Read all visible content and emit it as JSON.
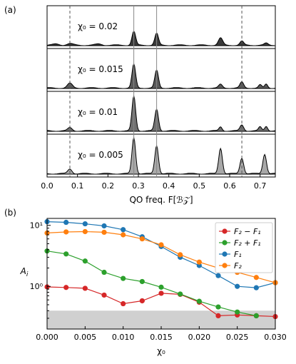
{
  "chart_data": [
    {
      "type": "area",
      "panel_label": "(a)",
      "xlabel": "QO freq. F[ℬ𝒵]",
      "xlim": [
        0.0,
        0.75
      ],
      "xticks": [
        "0.0",
        "0.1",
        "0.2",
        "0.3",
        "0.4",
        "0.5",
        "0.6",
        "0.7"
      ],
      "vlines_dashed": [
        0.075,
        0.64
      ],
      "vlines_solid": [
        0.285,
        0.36
      ],
      "series": [
        {
          "name": "χ₀ = 0.02",
          "peaks": [
            [
              0.03,
              0.03,
              0.01
            ],
            [
              0.075,
              0.04,
              0.01
            ],
            [
              0.17,
              0.03,
              0.01
            ],
            [
              0.285,
              0.35,
              0.006
            ],
            [
              0.36,
              0.3,
              0.006
            ],
            [
              0.57,
              0.18,
              0.007
            ],
            [
              0.64,
              0.1,
              0.006
            ],
            [
              0.72,
              0.05,
              0.006
            ]
          ]
        },
        {
          "name": "χ₀ = 0.015",
          "peaks": [
            [
              0.075,
              0.12,
              0.008
            ],
            [
              0.285,
              0.6,
              0.006
            ],
            [
              0.36,
              0.45,
              0.006
            ],
            [
              0.57,
              0.09,
              0.006
            ],
            [
              0.64,
              0.15,
              0.006
            ],
            [
              0.7,
              0.08,
              0.005
            ],
            [
              0.72,
              0.1,
              0.005
            ]
          ]
        },
        {
          "name": "χ₀ = 0.01",
          "peaks": [
            [
              0.075,
              0.08,
              0.007
            ],
            [
              0.285,
              0.88,
              0.006
            ],
            [
              0.36,
              0.55,
              0.006
            ],
            [
              0.57,
              0.1,
              0.005
            ],
            [
              0.64,
              0.15,
              0.006
            ],
            [
              0.7,
              0.1,
              0.005
            ],
            [
              0.72,
              0.12,
              0.005
            ]
          ]
        },
        {
          "name": "χ₀ = 0.005",
          "peaks": [
            [
              0.075,
              0.12,
              0.007
            ],
            [
              0.285,
              0.92,
              0.006
            ],
            [
              0.36,
              0.72,
              0.006
            ],
            [
              0.57,
              0.65,
              0.006
            ],
            [
              0.64,
              0.4,
              0.006
            ],
            [
              0.715,
              0.5,
              0.006
            ]
          ]
        }
      ]
    },
    {
      "type": "line",
      "panel_label": "(b)",
      "xlabel": "χ₀",
      "ylabel": "A_i",
      "xlim": [
        0.0,
        0.03
      ],
      "ylim_log": [
        0.2,
        13
      ],
      "yscale": "log",
      "xticks": [
        "0.000",
        "0.005",
        "0.010",
        "0.015",
        "0.020",
        "0.025",
        "0.030"
      ],
      "yticks": [
        "10⁰",
        "10¹"
      ],
      "shaded_below": 0.4,
      "legend_loc": "upper right",
      "x": [
        0.0,
        0.0025,
        0.005,
        0.0075,
        0.01,
        0.0125,
        0.015,
        0.0175,
        0.02,
        0.0225,
        0.025,
        0.0275,
        0.03
      ],
      "series": [
        {
          "name": "F₂ − F₁",
          "color": "#d62728",
          "values": [
            0.98,
            0.96,
            0.93,
            0.72,
            0.52,
            0.58,
            0.77,
            0.74,
            0.55,
            0.33,
            0.34,
            0.33,
            0.32
          ]
        },
        {
          "name": "F₂ + F₁",
          "color": "#2ca02c",
          "values": [
            3.8,
            3.4,
            2.6,
            1.7,
            1.35,
            1.2,
            0.97,
            0.75,
            0.57,
            0.46,
            0.38,
            0.33,
            null
          ]
        },
        {
          "name": "F₁",
          "color": "#1f77b4",
          "values": [
            11.5,
            11.2,
            10.6,
            9.8,
            8.5,
            6.5,
            4.5,
            3.0,
            2.2,
            1.5,
            1.0,
            0.95,
            1.15
          ]
        },
        {
          "name": "F₂",
          "color": "#ff7f0e",
          "values": [
            7.5,
            7.8,
            7.9,
            7.7,
            7.0,
            6.0,
            4.8,
            3.3,
            2.5,
            2.0,
            1.7,
            1.4,
            1.15
          ]
        }
      ]
    }
  ]
}
